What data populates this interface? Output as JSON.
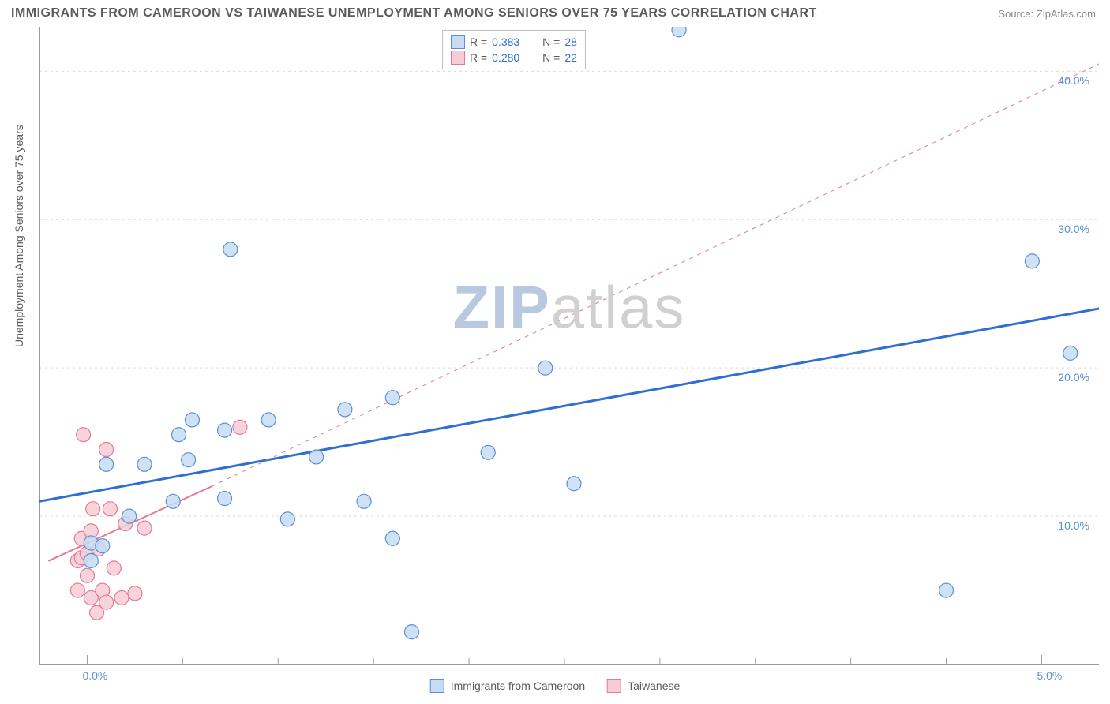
{
  "title": "IMMIGRANTS FROM CAMEROON VS TAIWANESE UNEMPLOYMENT AMONG SENIORS OVER 75 YEARS CORRELATION CHART",
  "source_label": "Source:",
  "source_value": "ZipAtlas.com",
  "ylabel": "Unemployment Among Seniors over 75 years",
  "watermark_a": "ZIP",
  "watermark_b": "atlas",
  "chart": {
    "type": "scatter",
    "background_color": "#ffffff",
    "grid_color": "#d9d9d9",
    "axis_color": "#9a9a9a",
    "tick_text_color": "#5a8fd6",
    "x_domain": [
      -0.25,
      5.3
    ],
    "y_domain": [
      0,
      43
    ],
    "x_ticks": [
      0.0,
      5.0
    ],
    "x_minor_ticks": [
      0.5,
      1.0,
      1.5,
      2.0,
      2.5,
      3.0,
      3.5,
      4.0,
      4.5
    ],
    "y_ticks": [
      10.0,
      20.0,
      30.0,
      40.0
    ],
    "x_tick_format": "pct1",
    "y_tick_format": "pct1",
    "marker_radius": 9,
    "marker_stroke_width": 1.2,
    "line_solid_width": 3,
    "line_dash_width": 1,
    "series": [
      {
        "name": "Immigrants from Cameroon",
        "fill": "#c7dcf3",
        "stroke": "#5a8fd6",
        "points": [
          [
            0.02,
            8.2
          ],
          [
            0.02,
            7.0
          ],
          [
            0.08,
            8.0
          ],
          [
            0.1,
            13.5
          ],
          [
            0.22,
            10.0
          ],
          [
            0.3,
            13.5
          ],
          [
            0.45,
            11.0
          ],
          [
            0.48,
            15.5
          ],
          [
            0.53,
            13.8
          ],
          [
            0.55,
            16.5
          ],
          [
            0.72,
            15.8
          ],
          [
            0.72,
            11.2
          ],
          [
            0.75,
            28.0
          ],
          [
            0.95,
            16.5
          ],
          [
            1.05,
            9.8
          ],
          [
            1.2,
            14.0
          ],
          [
            1.35,
            17.2
          ],
          [
            1.45,
            11.0
          ],
          [
            1.6,
            18.0
          ],
          [
            1.6,
            8.5
          ],
          [
            1.7,
            2.2
          ],
          [
            2.1,
            14.3
          ],
          [
            2.4,
            20.0
          ],
          [
            2.55,
            12.2
          ],
          [
            3.1,
            42.8
          ],
          [
            4.5,
            5.0
          ],
          [
            4.95,
            27.2
          ],
          [
            5.15,
            21.0
          ]
        ],
        "trend": {
          "style": "solid",
          "color": "#2e6fd1",
          "p1": [
            -0.25,
            11.0
          ],
          "p2": [
            5.3,
            24.0
          ]
        }
      },
      {
        "name": "Taiwanese",
        "fill": "#f6cdd6",
        "stroke": "#e27a94",
        "points": [
          [
            -0.05,
            7.0
          ],
          [
            -0.05,
            5.0
          ],
          [
            -0.03,
            8.5
          ],
          [
            -0.03,
            7.2
          ],
          [
            -0.02,
            15.5
          ],
          [
            0.0,
            6.0
          ],
          [
            0.0,
            7.5
          ],
          [
            0.02,
            4.5
          ],
          [
            0.02,
            9.0
          ],
          [
            0.03,
            10.5
          ],
          [
            0.05,
            3.5
          ],
          [
            0.06,
            7.8
          ],
          [
            0.08,
            5.0
          ],
          [
            0.1,
            14.5
          ],
          [
            0.1,
            4.2
          ],
          [
            0.12,
            10.5
          ],
          [
            0.14,
            6.5
          ],
          [
            0.18,
            4.5
          ],
          [
            0.2,
            9.5
          ],
          [
            0.25,
            4.8
          ],
          [
            0.3,
            9.2
          ],
          [
            0.8,
            16.0
          ]
        ],
        "trend": {
          "style": "split",
          "color": "#e27a94",
          "solid": {
            "p1": [
              -0.2,
              7.0
            ],
            "p2": [
              0.65,
              12.0
            ]
          },
          "dashed": {
            "p1": [
              0.65,
              12.0
            ],
            "p2": [
              5.3,
              40.5
            ]
          }
        }
      }
    ]
  },
  "stat_legend": {
    "rows": [
      {
        "swatch_fill": "#c7dcf3",
        "swatch_stroke": "#5a8fd6",
        "r_label": "R =",
        "r": "0.383",
        "n_label": "N =",
        "n": "28"
      },
      {
        "swatch_fill": "#f6cdd6",
        "swatch_stroke": "#e27a94",
        "r_label": "R =",
        "r": "0.280",
        "n_label": "N =",
        "n": "22"
      }
    ],
    "label_color": "#5b5b5b",
    "value_color": "#2e6fd1"
  },
  "bottom_legend": [
    {
      "swatch_fill": "#c7dcf3",
      "swatch_stroke": "#5a8fd6",
      "label": "Immigrants from Cameroon"
    },
    {
      "swatch_fill": "#f6cdd6",
      "swatch_stroke": "#e27a94",
      "label": "Taiwanese"
    }
  ],
  "watermark_color_a": "#b8c9df",
  "watermark_color_b": "#d0d0d0"
}
